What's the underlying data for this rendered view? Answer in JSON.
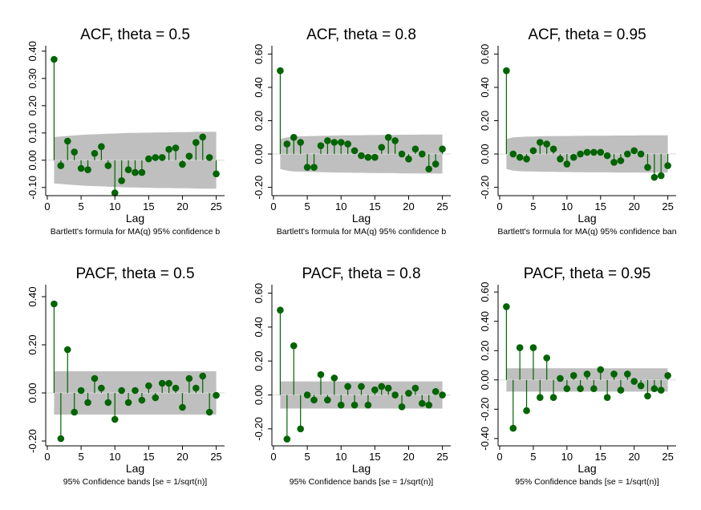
{
  "chart_data": [
    {
      "type": "line",
      "title": "ACF, theta = 0.5",
      "xlabel": "Lag",
      "note": "Bartlett's formula for MA(q) 95% confidence b",
      "xlim": [
        0,
        26
      ],
      "ylim": [
        -0.13,
        0.42
      ],
      "xticks": [
        "0",
        "5",
        "10",
        "15",
        "20",
        "25"
      ],
      "yticks": [
        "-0.10",
        "0.00",
        "0.10",
        "0.20",
        "0.30",
        "0.40"
      ],
      "x": [
        1,
        2,
        3,
        4,
        5,
        6,
        7,
        8,
        9,
        10,
        11,
        12,
        13,
        14,
        15,
        16,
        17,
        18,
        19,
        20,
        21,
        22,
        23,
        24,
        25
      ],
      "values": [
        0.37,
        -0.02,
        0.07,
        0.03,
        -0.03,
        -0.035,
        0.025,
        0.05,
        -0.02,
        -0.12,
        -0.075,
        -0.035,
        -0.045,
        -0.045,
        0.005,
        0.01,
        0.01,
        0.04,
        0.045,
        -0.015,
        0.015,
        0.065,
        0.085,
        0.01,
        -0.05
      ],
      "band_upper": [
        0.085,
        0.087,
        0.089,
        0.091,
        0.093,
        0.094,
        0.095,
        0.096,
        0.097,
        0.098,
        0.099,
        0.1,
        0.1,
        0.101,
        0.101,
        0.102,
        0.102,
        0.102,
        0.103,
        0.103,
        0.103,
        0.104,
        0.104,
        0.104,
        0.104
      ],
      "band_lower": [
        -0.085,
        -0.087,
        -0.089,
        -0.091,
        -0.093,
        -0.094,
        -0.095,
        -0.096,
        -0.097,
        -0.098,
        -0.099,
        -0.1,
        -0.1,
        -0.101,
        -0.101,
        -0.102,
        -0.102,
        -0.102,
        -0.103,
        -0.103,
        -0.103,
        -0.104,
        -0.104,
        -0.104,
        -0.104
      ]
    },
    {
      "type": "line",
      "title": "ACF, theta = 0.8",
      "xlabel": "Lag",
      "note": "Bartlett's formula for MA(q) 95% confidence b",
      "xlim": [
        0,
        26
      ],
      "ylim": [
        -0.25,
        0.65
      ],
      "xticks": [
        "0",
        "5",
        "10",
        "15",
        "20",
        "25"
      ],
      "yticks": [
        "-0.20",
        "0.00",
        "0.20",
        "0.40",
        "0.60"
      ],
      "x": [
        1,
        2,
        3,
        4,
        5,
        6,
        7,
        8,
        9,
        10,
        11,
        12,
        13,
        14,
        15,
        16,
        17,
        18,
        19,
        20,
        21,
        22,
        23,
        24,
        25
      ],
      "values": [
        0.5,
        0.06,
        0.1,
        0.07,
        -0.08,
        -0.08,
        0.05,
        0.08,
        0.07,
        0.07,
        0.06,
        0.02,
        -0.01,
        -0.02,
        -0.02,
        0.04,
        0.1,
        0.08,
        0.0,
        -0.03,
        0.03,
        0.0,
        -0.09,
        -0.06,
        0.03
      ],
      "band_upper": [
        0.09,
        0.1,
        0.105,
        0.106,
        0.107,
        0.108,
        0.109,
        0.11,
        0.111,
        0.112,
        0.112,
        0.113,
        0.113,
        0.114,
        0.114,
        0.115,
        0.115,
        0.115,
        0.116,
        0.116,
        0.116,
        0.117,
        0.117,
        0.117,
        0.117
      ],
      "band_lower": [
        -0.09,
        -0.1,
        -0.105,
        -0.106,
        -0.107,
        -0.108,
        -0.109,
        -0.11,
        -0.111,
        -0.112,
        -0.112,
        -0.113,
        -0.113,
        -0.114,
        -0.114,
        -0.115,
        -0.115,
        -0.115,
        -0.116,
        -0.116,
        -0.116,
        -0.117,
        -0.117,
        -0.117,
        -0.117
      ]
    },
    {
      "type": "line",
      "title": "ACF, theta = 0.95",
      "xlabel": "Lag",
      "note": "Bartlett's formula for MA(q) 95% confidence ban",
      "xlim": [
        0,
        26
      ],
      "ylim": [
        -0.25,
        0.65
      ],
      "xticks": [
        "0",
        "5",
        "10",
        "15",
        "20",
        "25"
      ],
      "yticks": [
        "-0.20",
        "0.00",
        "0.20",
        "0.40",
        "0.60"
      ],
      "x": [
        1,
        2,
        3,
        4,
        5,
        6,
        7,
        8,
        9,
        10,
        11,
        12,
        13,
        14,
        15,
        16,
        17,
        18,
        19,
        20,
        21,
        22,
        23,
        24,
        25
      ],
      "values": [
        0.5,
        0.0,
        -0.02,
        -0.03,
        0.02,
        0.07,
        0.06,
        0.03,
        -0.03,
        -0.06,
        -0.02,
        0.0,
        0.01,
        0.01,
        0.01,
        -0.01,
        -0.05,
        -0.04,
        0.0,
        0.02,
        0.0,
        -0.08,
        -0.14,
        -0.13,
        -0.07
      ],
      "band_upper": [
        0.09,
        0.1,
        0.103,
        0.104,
        0.105,
        0.106,
        0.107,
        0.107,
        0.108,
        0.108,
        0.109,
        0.109,
        0.11,
        0.11,
        0.11,
        0.11,
        0.111,
        0.111,
        0.111,
        0.111,
        0.112,
        0.112,
        0.112,
        0.112,
        0.112
      ],
      "band_lower": [
        -0.09,
        -0.1,
        -0.103,
        -0.104,
        -0.105,
        -0.106,
        -0.107,
        -0.107,
        -0.108,
        -0.108,
        -0.109,
        -0.109,
        -0.11,
        -0.11,
        -0.11,
        -0.11,
        -0.111,
        -0.111,
        -0.111,
        -0.111,
        -0.112,
        -0.112,
        -0.112,
        -0.112,
        -0.112
      ]
    },
    {
      "type": "line",
      "title": "PACF, theta = 0.5",
      "xlabel": "Lag",
      "note": "95% Confidence bands [se = 1/sqrt(n)]",
      "xlim": [
        0,
        26
      ],
      "ylim": [
        -0.22,
        0.45
      ],
      "xticks": [
        "0",
        "5",
        "10",
        "15",
        "20",
        "25"
      ],
      "yticks": [
        "-0.20",
        "0.00",
        "0.20",
        "0.40"
      ],
      "x": [
        1,
        2,
        3,
        4,
        5,
        6,
        7,
        8,
        9,
        10,
        11,
        12,
        13,
        14,
        15,
        16,
        17,
        18,
        19,
        20,
        21,
        22,
        23,
        24,
        25
      ],
      "values": [
        0.37,
        -0.19,
        0.18,
        -0.08,
        0.01,
        -0.04,
        0.06,
        0.02,
        -0.04,
        -0.11,
        0.01,
        -0.04,
        0.01,
        -0.03,
        0.03,
        -0.02,
        0.04,
        0.04,
        0.02,
        -0.06,
        0.06,
        0.02,
        0.07,
        -0.08,
        -0.01
      ],
      "band_upper": [
        0.09,
        0.09,
        0.09,
        0.09,
        0.09,
        0.09,
        0.09,
        0.09,
        0.09,
        0.09,
        0.09,
        0.09,
        0.09,
        0.09,
        0.09,
        0.09,
        0.09,
        0.09,
        0.09,
        0.09,
        0.09,
        0.09,
        0.09,
        0.09,
        0.09
      ],
      "band_lower": [
        -0.09,
        -0.09,
        -0.09,
        -0.09,
        -0.09,
        -0.09,
        -0.09,
        -0.09,
        -0.09,
        -0.09,
        -0.09,
        -0.09,
        -0.09,
        -0.09,
        -0.09,
        -0.09,
        -0.09,
        -0.09,
        -0.09,
        -0.09,
        -0.09,
        -0.09,
        -0.09,
        -0.09,
        -0.09
      ]
    },
    {
      "type": "line",
      "title": "PACF, theta = 0.8",
      "xlabel": "Lag",
      "note": "95% Confidence bands [se = 1/sqrt(n)]",
      "xlim": [
        0,
        26
      ],
      "ylim": [
        -0.3,
        0.65
      ],
      "xticks": [
        "0",
        "5",
        "10",
        "15",
        "20",
        "25"
      ],
      "yticks": [
        "-0.20",
        "0.00",
        "0.20",
        "0.40",
        "0.60"
      ],
      "x": [
        1,
        2,
        3,
        4,
        5,
        6,
        7,
        8,
        9,
        10,
        11,
        12,
        13,
        14,
        15,
        16,
        17,
        18,
        19,
        20,
        21,
        22,
        23,
        24,
        25
      ],
      "values": [
        0.5,
        -0.26,
        0.29,
        -0.2,
        0.0,
        -0.03,
        0.12,
        -0.03,
        0.1,
        -0.06,
        0.05,
        -0.06,
        0.05,
        -0.06,
        0.03,
        0.05,
        0.04,
        0.0,
        -0.07,
        0.01,
        0.04,
        -0.05,
        -0.06,
        0.02,
        0.0
      ],
      "band_upper": [
        0.08,
        0.08,
        0.08,
        0.08,
        0.08,
        0.08,
        0.08,
        0.08,
        0.08,
        0.08,
        0.08,
        0.08,
        0.08,
        0.08,
        0.08,
        0.08,
        0.08,
        0.08,
        0.08,
        0.08,
        0.08,
        0.08,
        0.08,
        0.08,
        0.08
      ],
      "band_lower": [
        -0.08,
        -0.08,
        -0.08,
        -0.08,
        -0.08,
        -0.08,
        -0.08,
        -0.08,
        -0.08,
        -0.08,
        -0.08,
        -0.08,
        -0.08,
        -0.08,
        -0.08,
        -0.08,
        -0.08,
        -0.08,
        -0.08,
        -0.08,
        -0.08,
        -0.08,
        -0.08,
        -0.08,
        -0.08
      ]
    },
    {
      "type": "line",
      "title": "PACF, theta = 0.95",
      "xlabel": "Lag",
      "note": "95% Confidence bands [se = 1/sqrt(n)]",
      "xlim": [
        0,
        26
      ],
      "ylim": [
        -0.45,
        0.65
      ],
      "xticks": [
        "0",
        "5",
        "10",
        "15",
        "20",
        "25"
      ],
      "yticks": [
        "-0.40",
        "-0.20",
        "0.00",
        "0.20",
        "0.40",
        "0.60"
      ],
      "x": [
        1,
        2,
        3,
        4,
        5,
        6,
        7,
        8,
        9,
        10,
        11,
        12,
        13,
        14,
        15,
        16,
        17,
        18,
        19,
        20,
        21,
        22,
        23,
        24,
        25
      ],
      "values": [
        0.5,
        -0.33,
        0.22,
        -0.21,
        0.22,
        -0.12,
        0.15,
        -0.12,
        0.01,
        -0.06,
        0.03,
        -0.06,
        0.04,
        -0.06,
        0.07,
        -0.12,
        0.04,
        -0.07,
        0.04,
        -0.01,
        -0.04,
        -0.11,
        -0.06,
        -0.07,
        0.03
      ],
      "band_upper": [
        0.08,
        0.08,
        0.08,
        0.08,
        0.08,
        0.08,
        0.08,
        0.08,
        0.08,
        0.08,
        0.08,
        0.08,
        0.08,
        0.08,
        0.08,
        0.08,
        0.08,
        0.08,
        0.08,
        0.08,
        0.08,
        0.08,
        0.08,
        0.08,
        0.08
      ],
      "band_lower": [
        -0.08,
        -0.08,
        -0.08,
        -0.08,
        -0.08,
        -0.08,
        -0.08,
        -0.08,
        -0.08,
        -0.08,
        -0.08,
        -0.08,
        -0.08,
        -0.08,
        -0.08,
        -0.08,
        -0.08,
        -0.08,
        -0.08,
        -0.08,
        -0.08,
        -0.08,
        -0.08,
        -0.08,
        -0.08
      ]
    }
  ],
  "colors": {
    "marker": "#006400",
    "band": "#bfbfbf",
    "axis": "#000000",
    "background": "#ffffff"
  }
}
